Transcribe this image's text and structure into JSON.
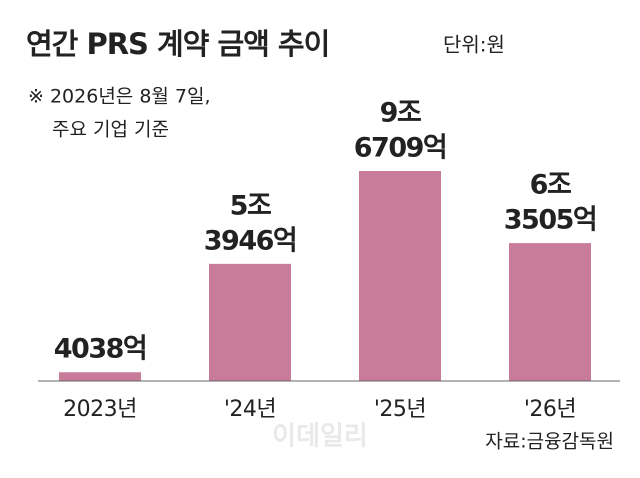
{
  "chart_data": {
    "type": "bar",
    "title": "연간 PRS 계약 금액 추이",
    "unit": "단위:원",
    "notes": [
      "※  2026년은 8월 7일,",
      "주요 기업 기준"
    ],
    "categories": [
      "2023년",
      "'24년",
      "'25년",
      "'26년"
    ],
    "values": [
      403800000000,
      5394600000000,
      9670900000000,
      6350500000000
    ],
    "value_labels": [
      [
        "4038억"
      ],
      [
        "5조",
        "3946억"
      ],
      [
        "9조",
        "6709억"
      ],
      [
        "6조",
        "3505억"
      ]
    ],
    "color": "#c97b9a",
    "source": "자료:금융감독원",
    "watermark": "이데일리"
  }
}
